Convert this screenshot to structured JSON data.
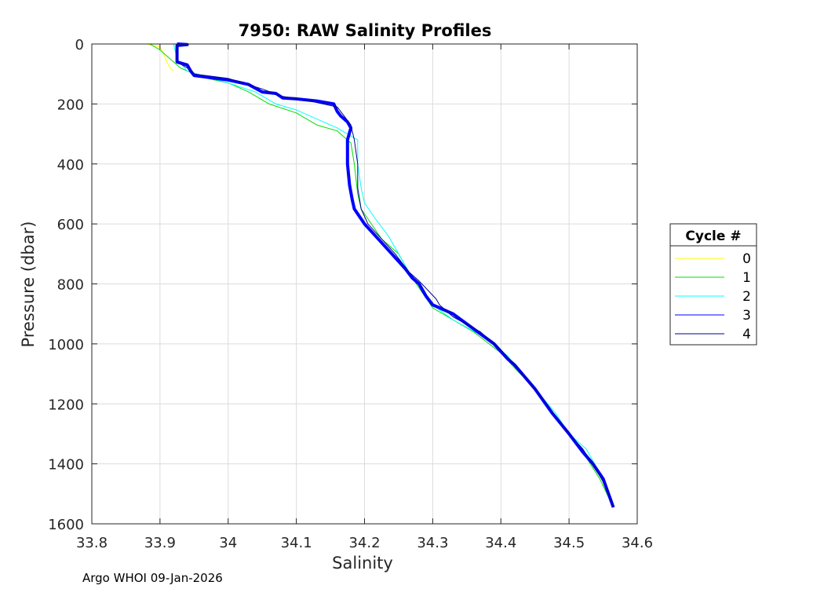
{
  "chart_data": {
    "type": "line",
    "title": "7950: RAW Salinity Profiles",
    "xlabel": "Salinity",
    "ylabel": "Pressure (dbar)",
    "xlim": [
      33.8,
      34.6
    ],
    "ylim": [
      0,
      1600
    ],
    "y_reversed": true,
    "grid": true,
    "xticks": [
      "33.8",
      "33.9",
      "34",
      "34.1",
      "34.2",
      "34.3",
      "34.4",
      "34.5",
      "34.6"
    ],
    "yticks": [
      "0",
      "200",
      "400",
      "600",
      "800",
      "1000",
      "1200",
      "1400",
      "1600"
    ],
    "legend": {
      "title": "Cycle #",
      "placement": "outside-right",
      "entries": [
        "0",
        "1",
        "2",
        "3",
        "4"
      ]
    },
    "series": [
      {
        "name": "0",
        "color": "#ffff00",
        "points": [
          [
            33.88,
            0
          ],
          [
            33.9,
            10
          ],
          [
            33.905,
            30
          ],
          [
            33.91,
            60
          ],
          [
            33.915,
            80
          ],
          [
            33.92,
            90
          ]
        ]
      },
      {
        "name": "1",
        "color": "#00dd00",
        "points": [
          [
            33.885,
            0
          ],
          [
            33.9,
            20
          ],
          [
            33.915,
            50
          ],
          [
            33.93,
            80
          ],
          [
            33.96,
            110
          ],
          [
            34.0,
            130
          ],
          [
            34.03,
            160
          ],
          [
            34.06,
            200
          ],
          [
            34.1,
            230
          ],
          [
            34.13,
            270
          ],
          [
            34.16,
            290
          ],
          [
            34.18,
            330
          ],
          [
            34.185,
            400
          ],
          [
            34.19,
            500
          ],
          [
            34.195,
            550
          ],
          [
            34.21,
            600
          ],
          [
            34.225,
            650
          ],
          [
            34.25,
            700
          ],
          [
            34.27,
            780
          ],
          [
            34.285,
            830
          ],
          [
            34.3,
            880
          ],
          [
            34.33,
            920
          ],
          [
            34.36,
            960
          ],
          [
            34.4,
            1030
          ],
          [
            34.42,
            1080
          ],
          [
            34.45,
            1150
          ],
          [
            34.475,
            1230
          ],
          [
            34.5,
            1300
          ],
          [
            34.52,
            1360
          ],
          [
            34.545,
            1450
          ],
          [
            34.565,
            1545
          ]
        ]
      },
      {
        "name": "2",
        "color": "#00ffff",
        "points": [
          [
            33.92,
            0
          ],
          [
            33.925,
            50
          ],
          [
            33.94,
            90
          ],
          [
            33.97,
            110
          ],
          [
            34.0,
            130
          ],
          [
            34.04,
            160
          ],
          [
            34.07,
            200
          ],
          [
            34.1,
            220
          ],
          [
            34.14,
            260
          ],
          [
            34.16,
            280
          ],
          [
            34.19,
            320
          ],
          [
            34.19,
            400
          ],
          [
            34.195,
            480
          ],
          [
            34.2,
            530
          ],
          [
            34.215,
            580
          ],
          [
            34.235,
            640
          ],
          [
            34.25,
            700
          ],
          [
            34.265,
            760
          ],
          [
            34.28,
            800
          ],
          [
            34.3,
            870
          ],
          [
            34.33,
            920
          ],
          [
            34.37,
            970
          ],
          [
            34.41,
            1040
          ],
          [
            34.42,
            1070
          ],
          [
            34.45,
            1150
          ],
          [
            34.48,
            1230
          ],
          [
            34.5,
            1300
          ],
          [
            34.525,
            1350
          ],
          [
            34.55,
            1450
          ],
          [
            34.565,
            1545
          ]
        ]
      },
      {
        "name": "3",
        "color": "#0000ff",
        "points": [
          [
            33.925,
            0
          ],
          [
            33.94,
            2
          ],
          [
            33.925,
            5
          ],
          [
            33.925,
            60
          ],
          [
            33.94,
            70
          ],
          [
            33.945,
            90
          ],
          [
            33.95,
            105
          ],
          [
            34.0,
            120
          ],
          [
            34.03,
            135
          ],
          [
            34.05,
            160
          ],
          [
            34.07,
            165
          ],
          [
            34.08,
            180
          ],
          [
            34.1,
            183
          ],
          [
            34.13,
            190
          ],
          [
            34.155,
            200
          ],
          [
            34.16,
            225
          ],
          [
            34.165,
            240
          ],
          [
            34.175,
            260
          ],
          [
            34.18,
            280
          ],
          [
            34.175,
            320
          ],
          [
            34.175,
            400
          ],
          [
            34.178,
            470
          ],
          [
            34.182,
            520
          ],
          [
            34.185,
            550
          ],
          [
            34.2,
            600
          ],
          [
            34.22,
            650
          ],
          [
            34.24,
            700
          ],
          [
            34.26,
            750
          ],
          [
            34.27,
            780
          ],
          [
            34.28,
            800
          ],
          [
            34.29,
            840
          ],
          [
            34.3,
            870
          ],
          [
            34.33,
            900
          ],
          [
            34.36,
            950
          ],
          [
            34.39,
            1000
          ],
          [
            34.41,
            1050
          ],
          [
            34.42,
            1070
          ],
          [
            34.45,
            1150
          ],
          [
            34.475,
            1230
          ],
          [
            34.5,
            1300
          ],
          [
            34.52,
            1360
          ],
          [
            34.535,
            1400
          ],
          [
            34.55,
            1450
          ],
          [
            34.565,
            1545
          ]
        ]
      },
      {
        "name": "4",
        "color": "#00008b",
        "points": [
          [
            33.925,
            0
          ],
          [
            33.925,
            60
          ],
          [
            33.94,
            80
          ],
          [
            33.95,
            100
          ],
          [
            34.0,
            115
          ],
          [
            34.05,
            150
          ],
          [
            34.08,
            175
          ],
          [
            34.12,
            190
          ],
          [
            34.16,
            210
          ],
          [
            34.17,
            240
          ],
          [
            34.18,
            270
          ],
          [
            34.185,
            320
          ],
          [
            34.19,
            400
          ],
          [
            34.19,
            480
          ],
          [
            34.195,
            550
          ],
          [
            34.205,
            600
          ],
          [
            34.225,
            650
          ],
          [
            34.245,
            700
          ],
          [
            34.265,
            760
          ],
          [
            34.28,
            790
          ],
          [
            34.305,
            850
          ],
          [
            34.31,
            870
          ],
          [
            34.33,
            910
          ],
          [
            34.37,
            960
          ],
          [
            34.4,
            1020
          ],
          [
            34.42,
            1070
          ],
          [
            34.45,
            1150
          ],
          [
            34.48,
            1240
          ],
          [
            34.5,
            1300
          ],
          [
            34.52,
            1350
          ],
          [
            34.54,
            1420
          ],
          [
            34.555,
            1480
          ],
          [
            34.565,
            1545
          ]
        ]
      }
    ]
  },
  "footer": {
    "text": "Argo WHOI 09-Jan-2026"
  }
}
